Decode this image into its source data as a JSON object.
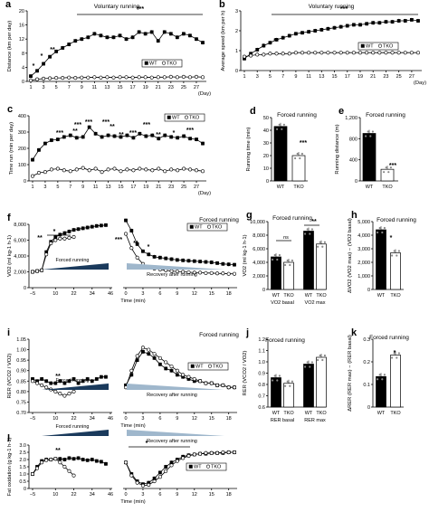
{
  "colors": {
    "wt": "#000000",
    "tko": "#ffffff",
    "stroke": "#000000",
    "wt_bar": "#000000",
    "tko_bar": "#ffffff"
  },
  "chart_data": [
    {
      "panel": "a",
      "type": "line",
      "title": "Voluntary running",
      "xlabel": "(Day)",
      "ylabel": "Distance (km per day)",
      "xticks": [
        "1",
        "3",
        "5",
        "7",
        "9",
        "11",
        "13",
        "15",
        "17",
        "19",
        "21",
        "23",
        "25",
        "27"
      ],
      "yticks": [
        "0",
        "4",
        "8",
        "12",
        "16",
        "20"
      ],
      "ylim": [
        0,
        20
      ],
      "legend": {
        "wt": "WT",
        "tko": "TKO",
        "position": "right"
      },
      "annotations": [
        "*",
        "*",
        "**",
        "***"
      ],
      "x": [
        1,
        2,
        3,
        4,
        5,
        6,
        7,
        8,
        9,
        10,
        11,
        12,
        13,
        14,
        15,
        16,
        17,
        18,
        19,
        20,
        21,
        22,
        23,
        24,
        25,
        26,
        27,
        28
      ],
      "series": [
        {
          "name": "WT",
          "values": [
            1.5,
            3,
            5,
            7,
            8.5,
            9.5,
            10.5,
            11.5,
            12,
            12.5,
            13.5,
            13,
            12.5,
            12.5,
            13,
            12,
            12.5,
            14,
            13.5,
            14,
            11.5,
            14,
            13.5,
            12.5,
            13.5,
            13,
            12,
            11
          ]
        },
        {
          "name": "TKO",
          "values": [
            0.3,
            0.6,
            0.8,
            0.9,
            1,
            1,
            1.1,
            1,
            1.1,
            1.1,
            1.2,
            1.1,
            1.2,
            1.1,
            1.2,
            1.2,
            1.1,
            1.2,
            1.2,
            1.1,
            1.2,
            1.2,
            1.3,
            1.2,
            1.3,
            1.2,
            1.3,
            1.2
          ]
        }
      ]
    },
    {
      "panel": "b",
      "type": "line",
      "title": "Voluntary running",
      "xlabel": "(Day)",
      "ylabel": "Average speed (km per h)",
      "xticks": [
        "1",
        "3",
        "5",
        "7",
        "9",
        "11",
        "13",
        "15",
        "17",
        "19",
        "21",
        "23",
        "25",
        "27"
      ],
      "yticks": [
        "0",
        "1",
        "2",
        "3"
      ],
      "ylim": [
        0,
        3
      ],
      "legend": {
        "wt": "WT",
        "tko": "TKO",
        "position": "right"
      },
      "annotations": [
        "*",
        "**",
        "***"
      ],
      "x": [
        1,
        2,
        3,
        4,
        5,
        6,
        7,
        8,
        9,
        10,
        11,
        12,
        13,
        14,
        15,
        16,
        17,
        18,
        19,
        20,
        21,
        22,
        23,
        24,
        25,
        26,
        27,
        28
      ],
      "series": [
        {
          "name": "WT",
          "values": [
            0.6,
            0.85,
            1.05,
            1.25,
            1.4,
            1.55,
            1.65,
            1.75,
            1.85,
            1.9,
            1.95,
            2,
            2.05,
            2.1,
            2.15,
            2.2,
            2.25,
            2.3,
            2.3,
            2.35,
            2.4,
            2.4,
            2.45,
            2.45,
            2.5,
            2.5,
            2.55,
            2.5
          ]
        },
        {
          "name": "TKO",
          "values": [
            0.7,
            0.75,
            0.8,
            0.8,
            0.85,
            0.85,
            0.85,
            0.85,
            0.9,
            0.9,
            0.9,
            0.9,
            0.9,
            0.9,
            0.9,
            0.9,
            0.9,
            0.9,
            0.9,
            0.9,
            0.9,
            0.9,
            0.9,
            0.9,
            0.9,
            0.9,
            0.9,
            0.9
          ]
        }
      ]
    },
    {
      "panel": "c",
      "type": "line",
      "title": "",
      "xlabel": "(Day)",
      "ylabel": "Time run (min per day)",
      "xticks": [
        "1",
        "3",
        "5",
        "7",
        "9",
        "11",
        "13",
        "15",
        "17",
        "19",
        "21",
        "23",
        "25",
        "27"
      ],
      "yticks": [
        "0",
        "100",
        "200",
        "300",
        "400"
      ],
      "ylim": [
        0,
        400
      ],
      "legend": {
        "wt": "WT",
        "tko": "TKO",
        "position": "top-right"
      },
      "annotations": [
        "***",
        "**",
        "***",
        "***",
        "**",
        "**",
        "***",
        "***",
        "**",
        "*",
        "***",
        "***"
      ],
      "x": [
        1,
        2,
        3,
        4,
        5,
        6,
        7,
        8,
        9,
        10,
        11,
        12,
        13,
        14,
        15,
        16,
        17,
        18,
        19,
        20,
        21,
        22,
        23,
        24,
        25,
        26,
        27,
        28
      ],
      "series": [
        {
          "name": "WT",
          "values": [
            130,
            190,
            230,
            250,
            255,
            270,
            280,
            265,
            270,
            330,
            290,
            270,
            280,
            275,
            270,
            280,
            265,
            290,
            275,
            280,
            260,
            280,
            270,
            265,
            275,
            260,
            255,
            230
          ]
        },
        {
          "name": "TKO",
          "values": [
            30,
            50,
            55,
            70,
            75,
            65,
            60,
            70,
            80,
            65,
            75,
            55,
            70,
            75,
            60,
            70,
            65,
            75,
            70,
            65,
            75,
            60,
            70,
            65,
            75,
            70,
            65,
            60
          ]
        }
      ]
    },
    {
      "panel": "d",
      "type": "bar",
      "title": "Forced running",
      "ylabel": "Running time (min)",
      "categories": [
        "WT",
        "TKO"
      ],
      "values": [
        43,
        20
      ],
      "yticks": [
        "0",
        "10",
        "20",
        "30",
        "40",
        "50"
      ],
      "ylim": [
        0,
        50
      ],
      "annotations": [
        "***"
      ]
    },
    {
      "panel": "e",
      "type": "bar",
      "title": "Forced running",
      "ylabel": "Running distance (m)",
      "categories": [
        "WT",
        "TKO"
      ],
      "values": [
        900,
        220
      ],
      "yticks": [
        "0",
        "400",
        "800",
        "1,200"
      ],
      "ylim": [
        0,
        1200
      ],
      "annotations": [
        "***"
      ]
    },
    {
      "panel": "f",
      "type": "line",
      "title": "Forced running",
      "xlabel": "Time (min)",
      "ylabel": "VO2 (ml kg-1 h-1)",
      "xticks": [
        "−5",
        "10",
        "22",
        "34",
        "46",
        "0",
        "3",
        "6",
        "9",
        "12",
        "15",
        "18"
      ],
      "yticks": [
        "0",
        "2,000",
        "4,000",
        "6,000",
        "8,000"
      ],
      "ylim": [
        0,
        8000
      ],
      "legend": {
        "wt": "WT",
        "tko": "TKO",
        "position": "top-right"
      },
      "inline_labels": [
        "Forced running",
        "Recovery after running"
      ],
      "annotations": [
        "*",
        "**",
        "***",
        "**",
        "*"
      ],
      "x_exercise": [
        -5,
        -2,
        1,
        4,
        7,
        10,
        13,
        16,
        19,
        22,
        25,
        28,
        31,
        34,
        37,
        40,
        43
      ],
      "x_recovery": [
        0,
        1,
        2,
        3,
        4,
        5,
        6,
        7,
        8,
        9,
        10,
        11,
        12,
        13,
        14,
        15,
        16,
        17,
        18,
        19
      ],
      "series": [
        {
          "name": "WT",
          "exercise": [
            2000,
            2100,
            2200,
            4500,
            5800,
            6400,
            6700,
            6900,
            7100,
            7300,
            7400,
            7500,
            7600,
            7700,
            7800,
            7850,
            7900
          ],
          "recovery": [
            8500,
            7200,
            5500,
            4600,
            4200,
            3900,
            3800,
            3700,
            3600,
            3500,
            3450,
            3400,
            3350,
            3300,
            3250,
            3200,
            3100,
            3000,
            2950,
            2900
          ]
        },
        {
          "name": "TKO",
          "exercise": [
            2000,
            2100,
            2200,
            4200,
            5600,
            6000,
            6200,
            6200,
            6300,
            6400
          ],
          "recovery": [
            6800,
            5000,
            3800,
            3000,
            2600,
            2400,
            2300,
            2200,
            2100,
            2050,
            2000,
            1950,
            1900,
            1900,
            1850,
            1850,
            1800,
            1800,
            1750,
            1750
          ]
        }
      ]
    },
    {
      "panel": "g",
      "type": "bar",
      "title": "Forced running",
      "ylabel": "VO2 (ml kg-1 h-1)",
      "categories": [
        "WT",
        "TKO",
        "WT",
        "TKO"
      ],
      "groups": [
        "VO2 basal",
        "VO2 max"
      ],
      "values": [
        4800,
        4000,
        8600,
        6700
      ],
      "yticks": [
        "0",
        "2,000",
        "4,000",
        "6,000",
        "8,000",
        "10,000"
      ],
      "ylim": [
        0,
        10000
      ],
      "annotations": [
        "ns",
        "**"
      ]
    },
    {
      "panel": "h",
      "type": "bar",
      "title": "Forced running",
      "ylabel": "ΔVO2 (VO2 max) − (VO2 basal)",
      "categories": [
        "WT",
        "TKO"
      ],
      "values": [
        4400,
        2700
      ],
      "yticks": [
        "0",
        "1,000",
        "2,000",
        "3,000",
        "4,000",
        "5,000"
      ],
      "ylim": [
        0,
        5000
      ],
      "annotations": [
        "*"
      ]
    },
    {
      "panel": "i",
      "type": "line",
      "title": "Forced running",
      "xlabel": "Time (min)",
      "ylabel": "RER (VCO2 / VO2)",
      "xticks": [
        "−5",
        "10",
        "22",
        "34",
        "46",
        "0",
        "3",
        "6",
        "9",
        "12",
        "15",
        "18"
      ],
      "yticks": [
        "0.70",
        "0.75",
        "0.80",
        "0.85",
        "0.90",
        "0.95",
        "1.00",
        "1.05"
      ],
      "ylim": [
        0.7,
        1.05
      ],
      "legend": {
        "wt": "WT",
        "tko": "TKO",
        "position": "right"
      },
      "inline_labels": [
        "Forced running",
        "Recovery after running"
      ],
      "annotations": [
        "**"
      ],
      "x_exercise": [
        -5,
        -2,
        1,
        4,
        7,
        10,
        13,
        16,
        19,
        22,
        25,
        28,
        31,
        34,
        37,
        40,
        43
      ],
      "x_recovery": [
        0,
        1,
        2,
        3,
        4,
        5,
        6,
        7,
        8,
        9,
        10,
        11,
        12,
        13,
        14,
        15,
        16,
        17,
        18,
        19
      ],
      "series": [
        {
          "name": "WT",
          "exercise": [
            0.86,
            0.85,
            0.86,
            0.85,
            0.84,
            0.84,
            0.85,
            0.84,
            0.85,
            0.86,
            0.84,
            0.85,
            0.86,
            0.85,
            0.86,
            0.87,
            0.87
          ],
          "recovery": [
            0.83,
            0.88,
            0.95,
            0.99,
            0.98,
            0.96,
            0.93,
            0.91,
            0.9,
            0.88,
            0.87,
            0.86,
            0.85,
            0.85,
            0.84,
            0.84,
            0.83,
            0.83,
            0.82,
            0.82
          ]
        },
        {
          "name": "TKO",
          "exercise": [
            0.85,
            0.84,
            0.83,
            0.82,
            0.81,
            0.8,
            0.79,
            0.78,
            0.79,
            0.8
          ],
          "recovery": [
            0.82,
            0.9,
            0.97,
            1.01,
            1.0,
            0.98,
            0.96,
            0.94,
            0.92,
            0.9,
            0.88,
            0.87,
            0.86,
            0.85,
            0.84,
            0.84,
            0.83,
            0.83,
            0.82,
            0.82
          ]
        }
      ]
    },
    {
      "panel": "j",
      "type": "bar",
      "title": "Forced running",
      "ylabel": "RER (VCO2 / VO2)",
      "categories": [
        "WT",
        "TKO",
        "WT",
        "TKO"
      ],
      "groups": [
        "RER basal",
        "RER max"
      ],
      "values": [
        0.86,
        0.81,
        0.98,
        1.04
      ],
      "yticks": [
        "0.6",
        "0.7",
        "0.8",
        "0.9",
        "1.0",
        "1.1",
        "1.2"
      ],
      "ylim": [
        0.6,
        1.2
      ]
    },
    {
      "panel": "k",
      "type": "bar",
      "title": "Forced running",
      "ylabel": "ΔRER (RER max) − (RER basal)",
      "categories": [
        "WT",
        "TKO"
      ],
      "values": [
        0.135,
        0.23
      ],
      "yticks": [
        "0",
        "0.1",
        "0.2",
        "0.3"
      ],
      "ylim": [
        0,
        0.3
      ],
      "annotations": [
        "*"
      ]
    },
    {
      "panel": "l",
      "type": "line",
      "title": "",
      "xlabel": "Time (min)",
      "ylabel": "Fat oxidation (g kg-1 h-1)",
      "xticks": [
        "−5",
        "10",
        "22",
        "34",
        "46",
        "0",
        "3",
        "6",
        "9",
        "12",
        "15",
        "18"
      ],
      "yticks": [
        "0",
        "0.5",
        "1.0",
        "1.5",
        "2.0",
        "2.5",
        "3.0"
      ],
      "ylim": [
        0,
        3
      ],
      "legend": {
        "wt": "WT",
        "tko": "TKO",
        "position": "right"
      },
      "inline_labels": [
        "Forced running",
        "Recovery after running"
      ],
      "annotations": [
        "**",
        "*"
      ],
      "x_exercise": [
        -5,
        -2,
        1,
        4,
        7,
        10,
        13,
        16,
        19,
        22,
        25,
        28,
        31,
        34,
        37,
        40,
        43
      ],
      "x_recovery": [
        0,
        1,
        2,
        3,
        4,
        5,
        6,
        7,
        8,
        9,
        10,
        11,
        12,
        13,
        14,
        15,
        16,
        17,
        18,
        19
      ],
      "series": [
        {
          "name": "WT",
          "exercise": [
            1.0,
            1.5,
            1.9,
            2.0,
            2.0,
            2.05,
            2.05,
            2.0,
            2.1,
            2.05,
            2.1,
            2.0,
            1.95,
            2.0,
            1.9,
            1.85,
            1.7
          ],
          "recovery": [
            1.8,
            1.0,
            0.5,
            0.3,
            0.4,
            0.7,
            1.1,
            1.5,
            1.8,
            2.0,
            2.2,
            2.3,
            2.35,
            2.4,
            2.4,
            2.45,
            2.45,
            2.45,
            2.5,
            2.5
          ]
        },
        {
          "name": "TKO",
          "exercise": [
            1.0,
            1.4,
            1.8,
            1.95,
            2.0,
            2.05,
            1.8,
            1.5,
            1.2,
            0.9
          ],
          "recovery": [
            1.8,
            0.9,
            0.4,
            0.2,
            0.25,
            0.5,
            0.8,
            1.2,
            1.6,
            1.9,
            2.1,
            2.25,
            2.35,
            2.4,
            2.45,
            2.45,
            2.45,
            2.5,
            2.5,
            2.5
          ]
        }
      ]
    }
  ]
}
